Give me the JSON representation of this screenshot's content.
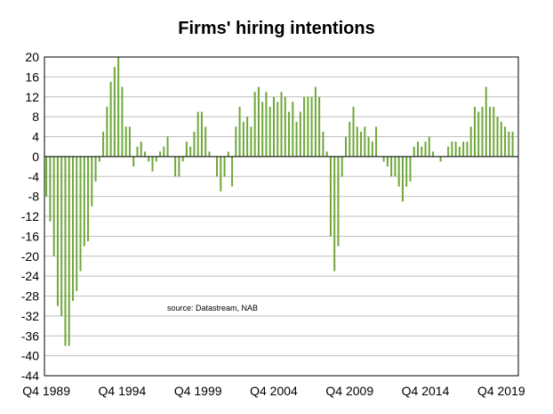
{
  "chart_data": {
    "type": "bar",
    "title": "Firms' hiring intentions",
    "xlabel": "",
    "ylabel": "",
    "ylim": [
      -44,
      20
    ],
    "yticks": [
      20,
      16,
      12,
      8,
      4,
      0,
      -4,
      -8,
      -12,
      -16,
      -20,
      -24,
      -28,
      -32,
      -36,
      -40,
      -44
    ],
    "grid": true,
    "bar_color": "#6fa83a",
    "annotation": "source:  Datastream, NAB",
    "x_tick_labels": [
      {
        "label": "Q4 1989",
        "index": 0
      },
      {
        "label": "Q4 1994",
        "index": 20
      },
      {
        "label": "Q4 1999",
        "index": 40
      },
      {
        "label": "Q4 2004",
        "index": 60
      },
      {
        "label": "Q4 2009",
        "index": 80
      },
      {
        "label": "Q4 2014",
        "index": 100
      },
      {
        "label": "Q4 2019",
        "index": 120
      }
    ],
    "values": [
      -8,
      -13,
      -20,
      -30,
      -32,
      -38,
      -38,
      -29,
      -27,
      -23,
      -18,
      -17,
      -10,
      -5,
      -1,
      5,
      10,
      15,
      18,
      20,
      14,
      6,
      6,
      -2,
      2,
      3,
      1,
      -1,
      -3,
      -1,
      1,
      2,
      4,
      0,
      -4,
      -4,
      -1,
      3,
      2,
      5,
      9,
      9,
      6,
      1,
      0,
      -4,
      -7,
      -4,
      1,
      -6,
      6,
      10,
      7,
      8,
      6,
      13,
      14,
      11,
      13,
      10,
      12,
      11,
      13,
      12,
      9,
      11,
      7,
      9,
      12,
      12,
      12,
      14,
      12,
      5,
      1,
      -16,
      -23,
      -18,
      -4,
      4,
      7,
      10,
      6,
      5,
      6,
      4,
      3,
      6,
      0,
      -1,
      -2,
      -4,
      -4,
      -6,
      -9,
      -6,
      -5,
      2,
      3,
      2,
      3,
      4,
      1,
      0,
      -1,
      0,
      2,
      3,
      3,
      2,
      3,
      3,
      6,
      10,
      9,
      10,
      14,
      10,
      10,
      8,
      7,
      6,
      5,
      5,
      0
    ]
  }
}
